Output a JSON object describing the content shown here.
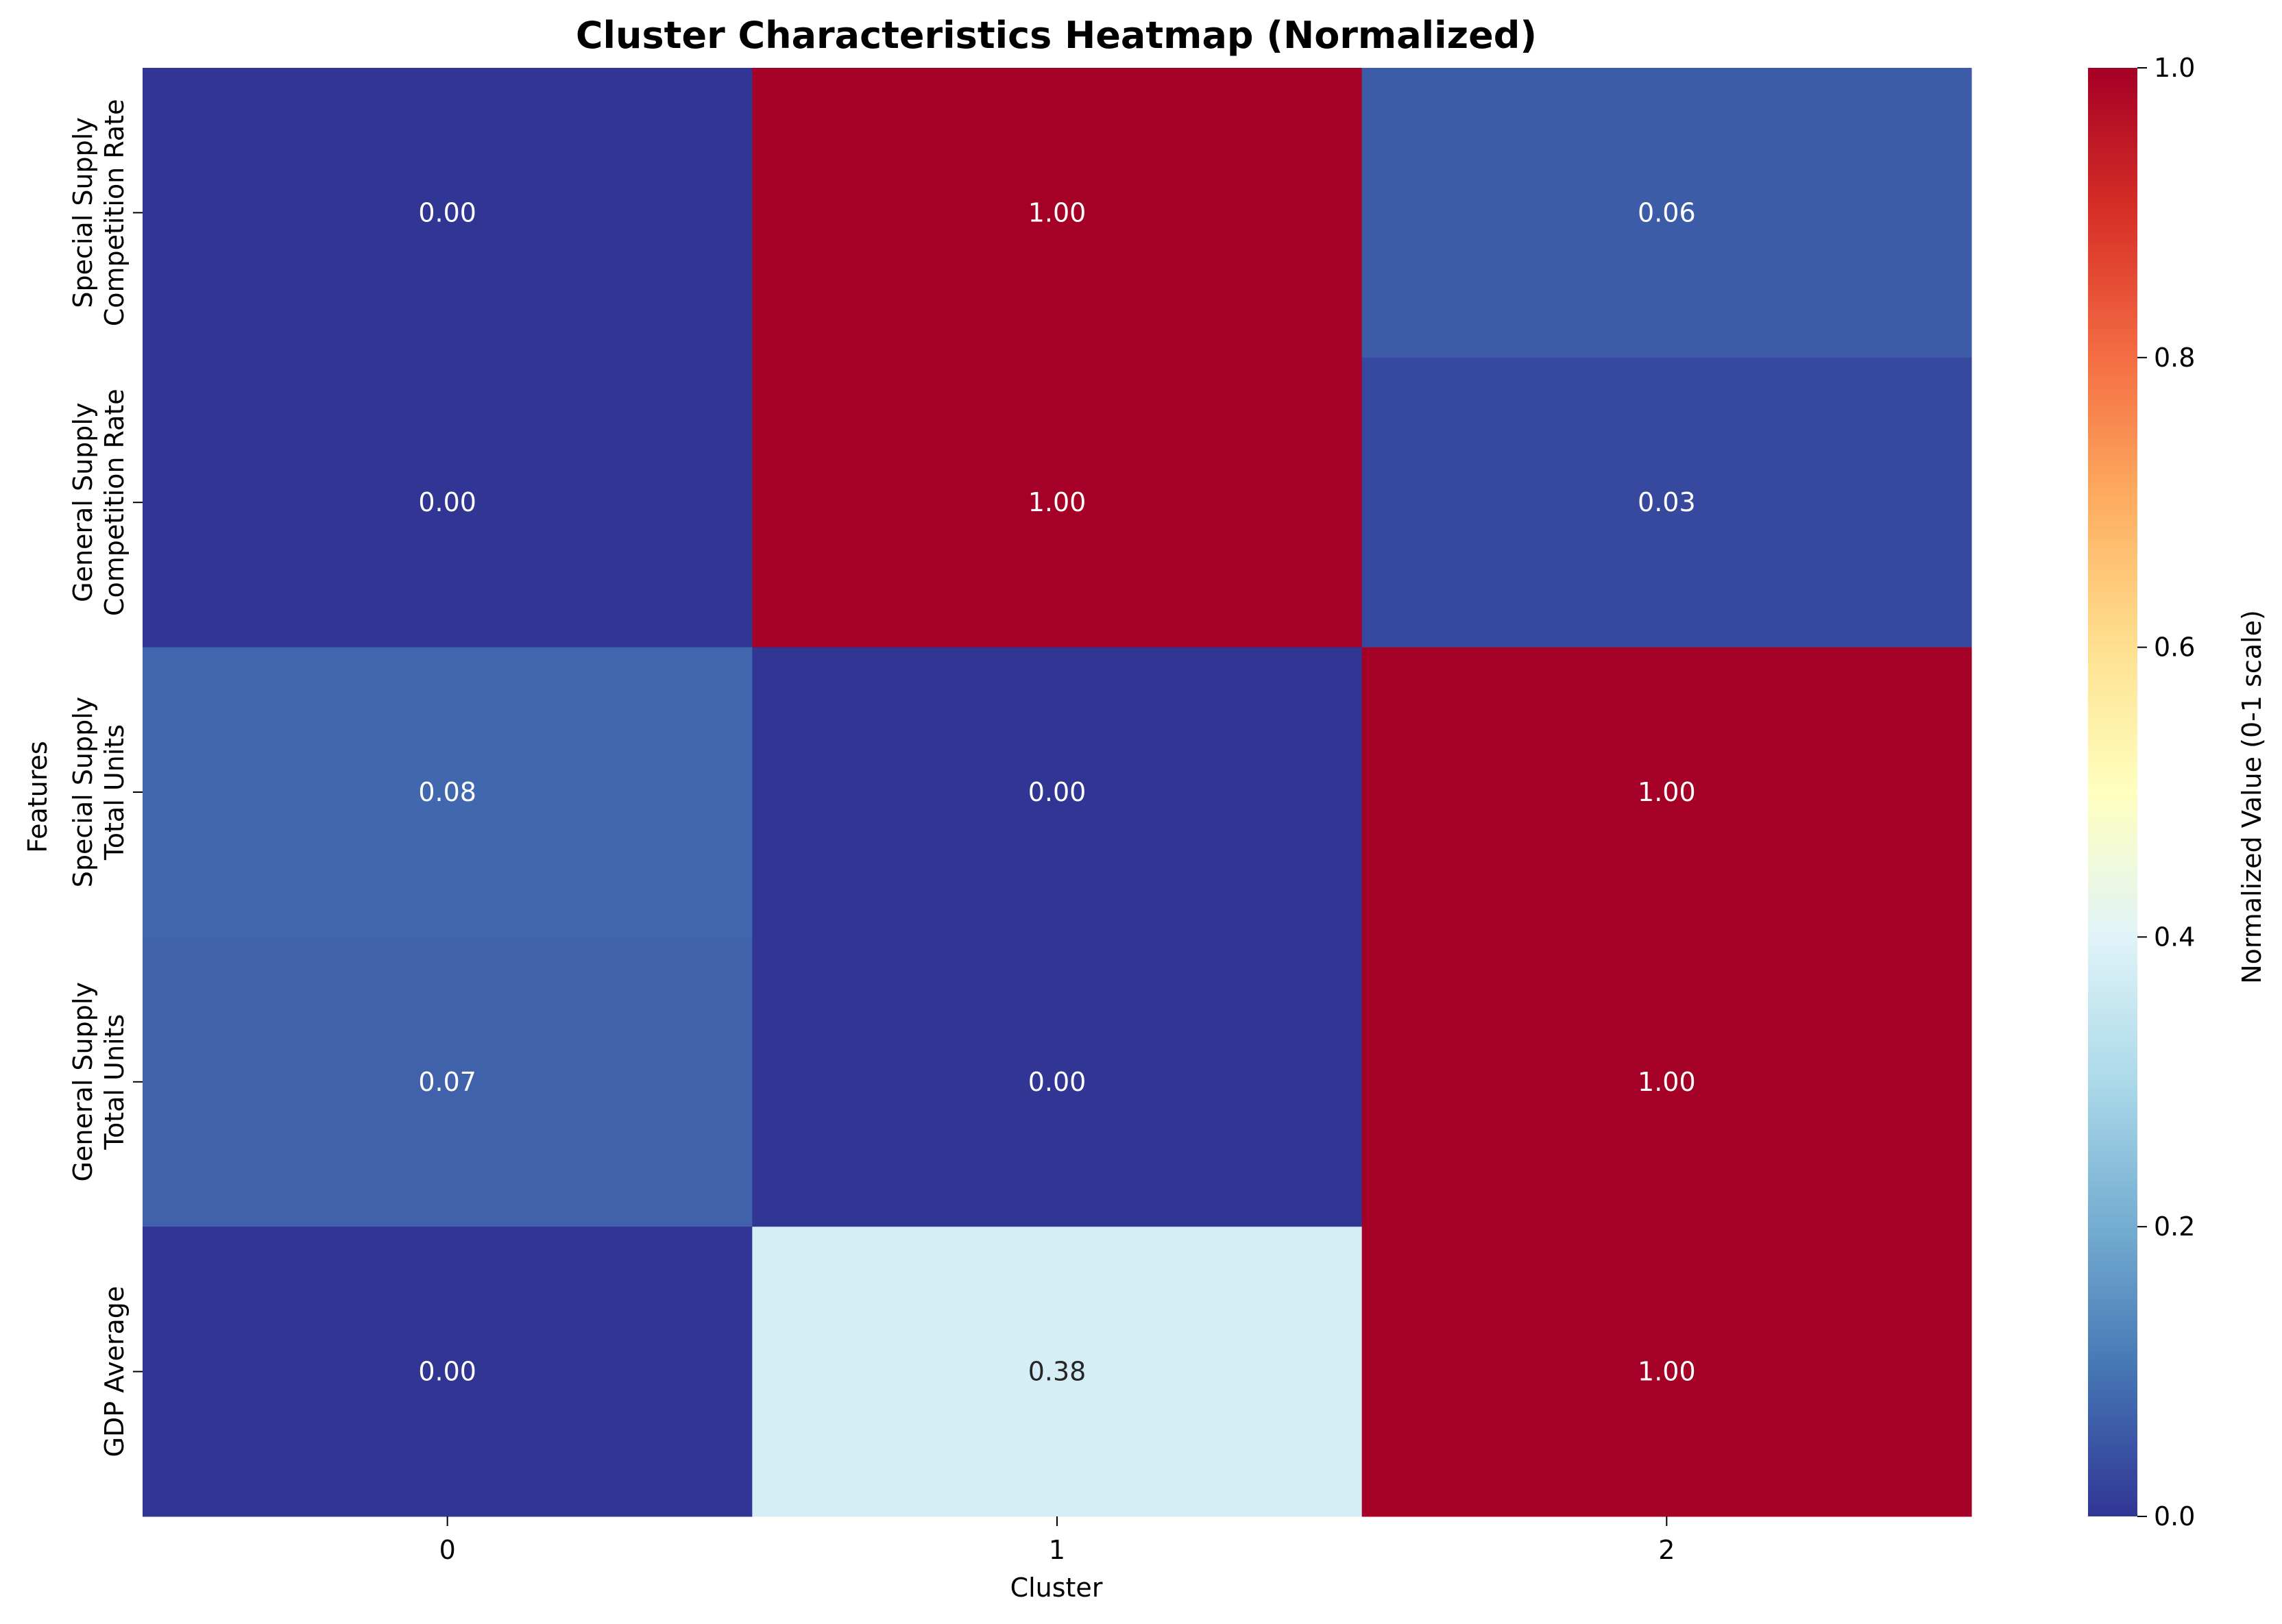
{
  "chart_data": {
    "type": "heatmap",
    "title": "Cluster Characteristics Heatmap (Normalized)",
    "xlabel": "Cluster",
    "ylabel": "Features",
    "x_categories": [
      "0",
      "1",
      "2"
    ],
    "y_categories": [
      [
        "Special Supply",
        "Competition Rate"
      ],
      [
        "General Supply",
        "Competition Rate"
      ],
      [
        "Special Supply",
        "Total Units"
      ],
      [
        "General Supply",
        "Total Units"
      ],
      [
        "GDP Average"
      ]
    ],
    "values": [
      [
        0.0,
        1.0,
        0.06
      ],
      [
        0.0,
        1.0,
        0.03
      ],
      [
        0.08,
        0.0,
        1.0
      ],
      [
        0.07,
        0.0,
        1.0
      ],
      [
        0.0,
        0.38,
        1.0
      ]
    ],
    "value_labels": [
      [
        "0.00",
        "1.00",
        "0.06"
      ],
      [
        "0.00",
        "1.00",
        "0.03"
      ],
      [
        "0.08",
        "0.00",
        "1.00"
      ],
      [
        "0.07",
        "0.00",
        "1.00"
      ],
      [
        "0.00",
        "0.38",
        "1.00"
      ]
    ],
    "colorbar": {
      "label": "Normalized Value (0-1 scale)",
      "range": [
        0,
        1
      ],
      "ticks": [
        "0.0",
        "0.2",
        "0.4",
        "0.6",
        "0.8",
        "1.0"
      ],
      "colormap": "RdYlBu_r"
    }
  }
}
